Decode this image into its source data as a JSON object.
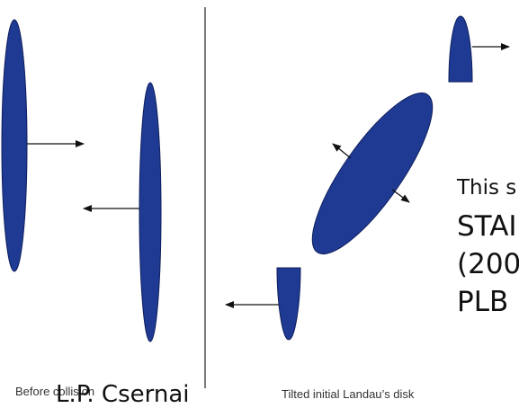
{
  "colors": {
    "disk_fill": "#1f3a93",
    "disk_stroke": "#0f1f5c",
    "arrow": "#111111",
    "divider": "#222222"
  },
  "captions": {
    "before_collision": "Before collision",
    "author": "L.P. Csernai",
    "tilted_disk": "Tilted initial Landau’s disk"
  },
  "note": {
    "line1": "This s",
    "line2": "STAI",
    "line3": "(200",
    "line4": "PLB"
  }
}
